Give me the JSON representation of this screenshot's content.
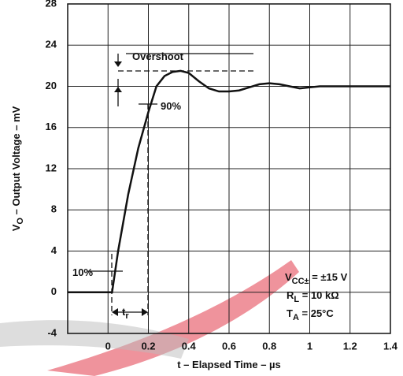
{
  "chart_data": {
    "type": "line",
    "x_label": {
      "parts": [
        {
          "text": "t – Elapsed Time – µs"
        }
      ]
    },
    "y_label": {
      "parts": [
        {
          "text": "V"
        },
        {
          "text": "O",
          "sub": true
        },
        {
          "text": " – Output Voltage – mV"
        }
      ]
    },
    "x": [
      -0.2,
      0.02,
      0.05,
      0.1,
      0.15,
      0.2,
      0.24,
      0.28,
      0.32,
      0.36,
      0.4,
      0.45,
      0.5,
      0.55,
      0.6,
      0.65,
      0.7,
      0.75,
      0.8,
      0.85,
      0.9,
      0.95,
      1.0,
      1.05,
      1.2,
      1.4
    ],
    "series": [
      {
        "color": "#111111",
        "values": [
          0,
          0,
          4,
          9.5,
          14,
          17.5,
          20,
          21,
          21.4,
          21.5,
          21.3,
          20.5,
          19.8,
          19.5,
          19.5,
          19.6,
          19.9,
          20.2,
          20.3,
          20.2,
          20,
          19.8,
          19.9,
          20,
          20,
          20
        ]
      }
    ],
    "xlim": [
      -0.2,
      1.4
    ],
    "xticks": [
      0,
      0.2,
      0.4,
      0.6,
      0.8,
      1,
      1.2,
      1.4
    ],
    "ylim": [
      -4,
      28
    ],
    "yticks": [
      -4,
      0,
      4,
      8,
      12,
      16,
      20,
      24,
      28
    ],
    "grid": true,
    "annotations": [
      {
        "parts": [
          {
            "text": "Overshoot"
          }
        ]
      },
      {
        "parts": [
          {
            "text": "90%"
          }
        ]
      },
      {
        "parts": [
          {
            "text": "10%"
          }
        ]
      },
      {
        "parts": [
          {
            "text": "t"
          },
          {
            "text": "r",
            "sub": true
          }
        ]
      },
      {
        "parts": [
          {
            "text": "V"
          },
          {
            "text": "CC±",
            "sub": true
          },
          {
            "text": " = ±15 V"
          }
        ]
      },
      {
        "parts": [
          {
            "text": "R"
          },
          {
            "text": "L",
            "sub": true
          },
          {
            "text": " = 10 kΩ"
          }
        ]
      },
      {
        "parts": [
          {
            "text": "T"
          },
          {
            "text": "A",
            "sub": true
          },
          {
            "text": " = 25°C"
          }
        ]
      }
    ]
  }
}
